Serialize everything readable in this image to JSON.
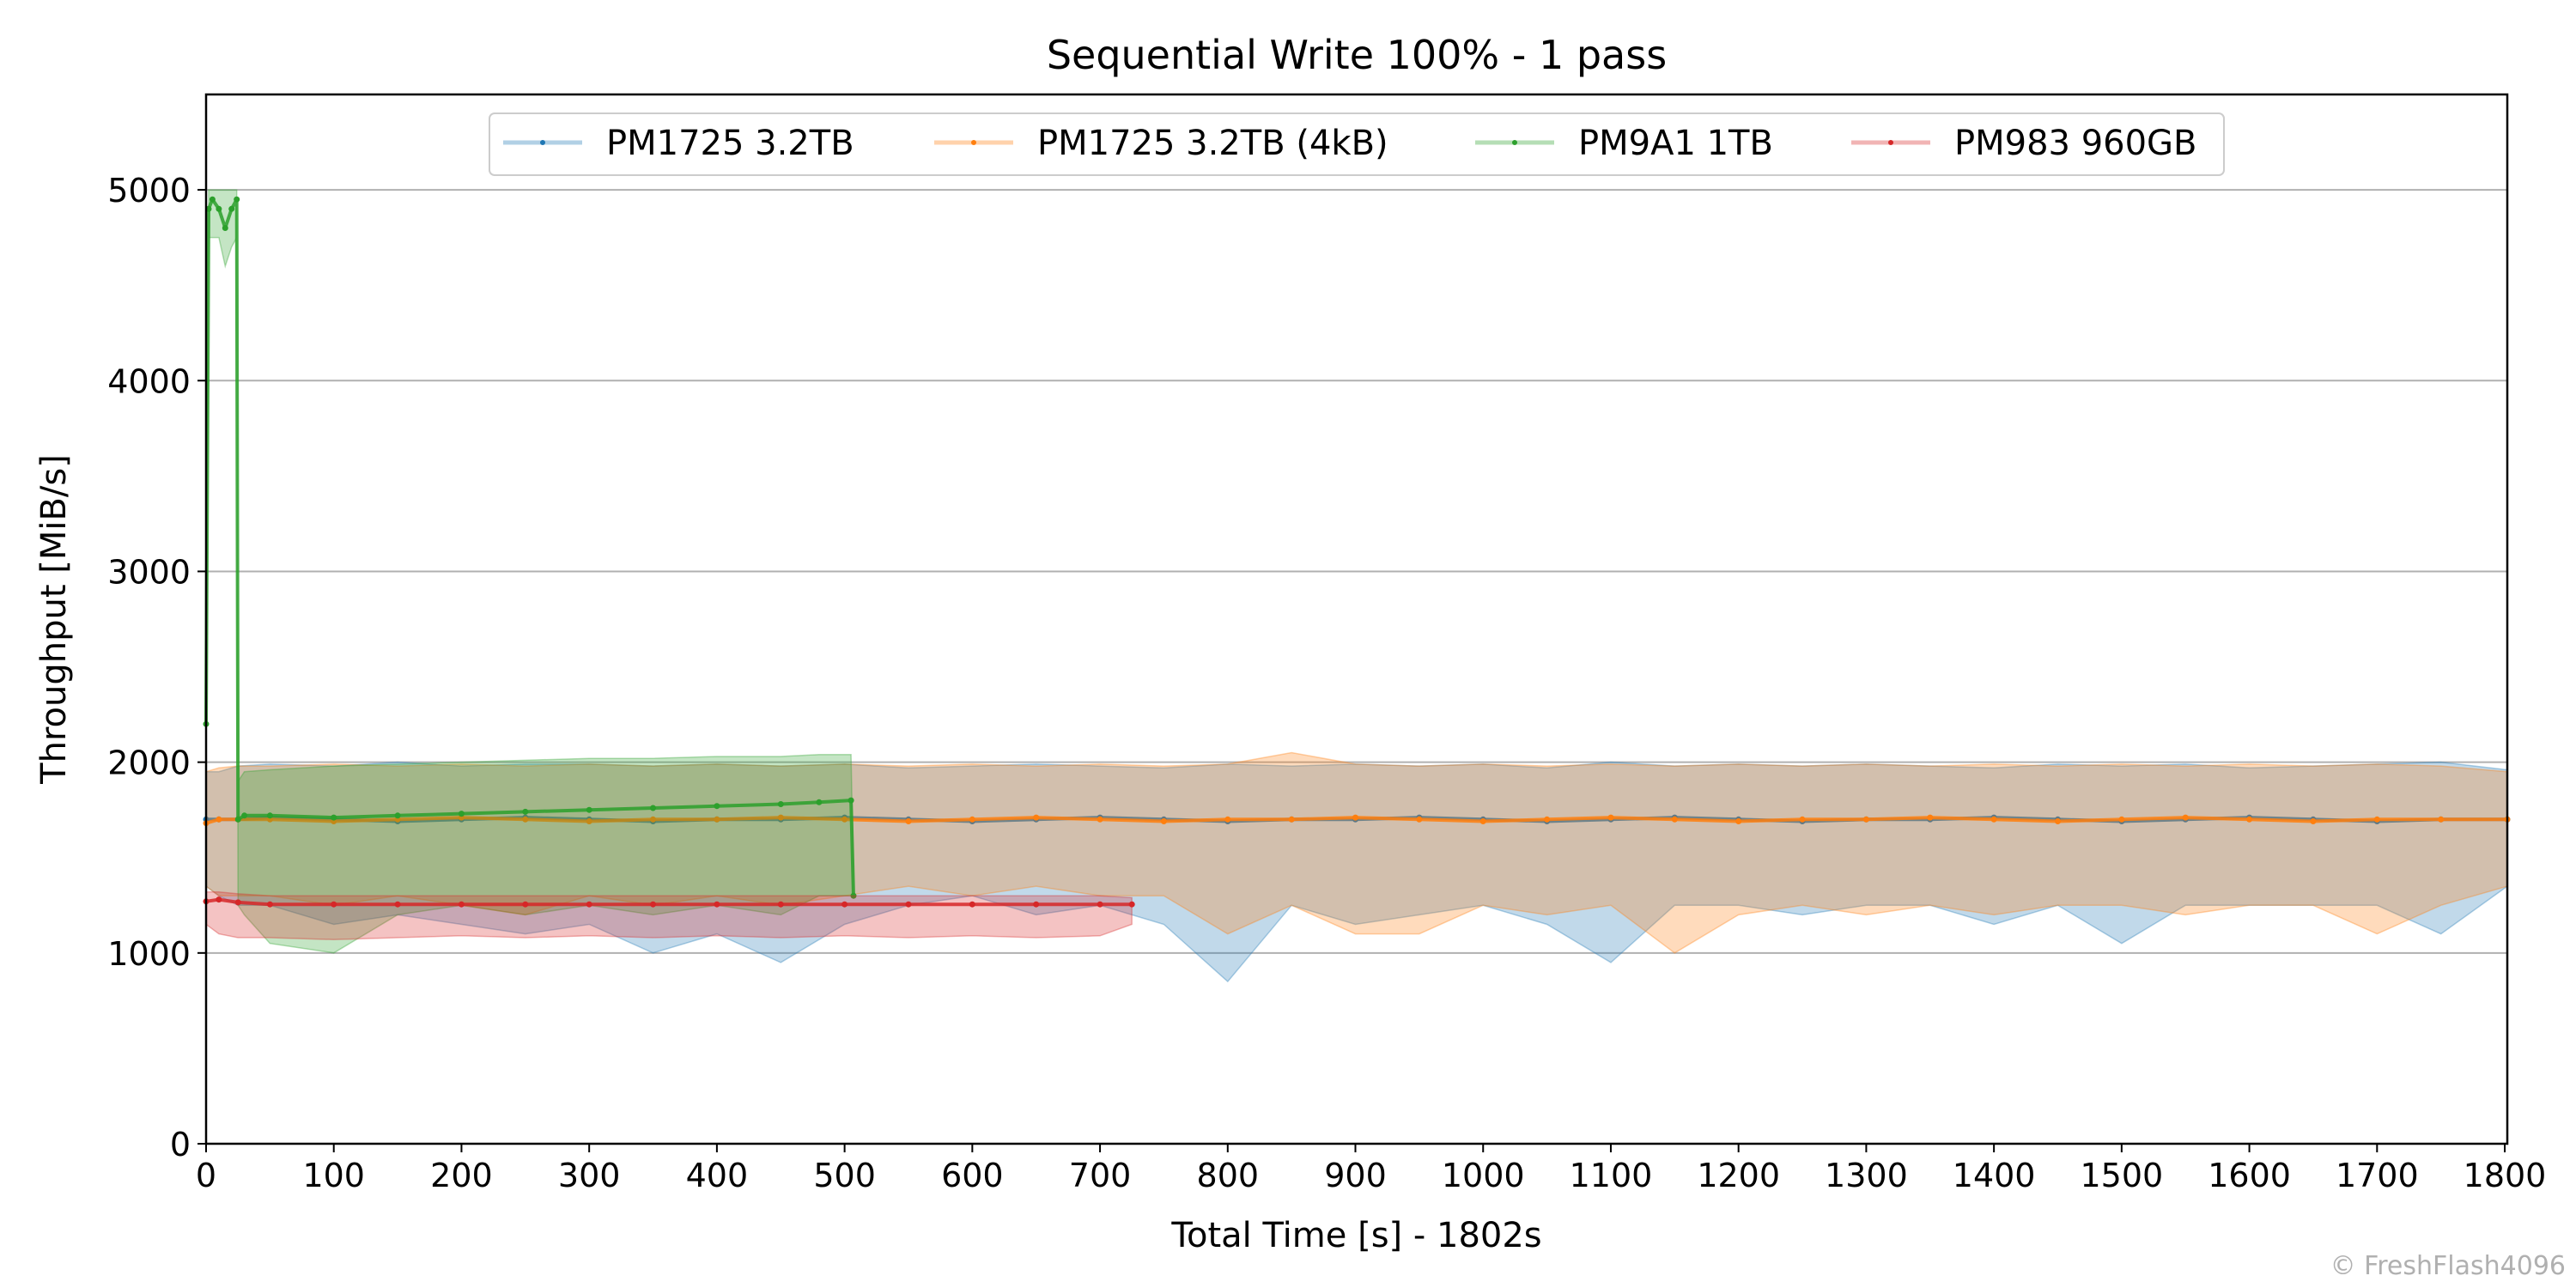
{
  "chart_data": {
    "type": "line",
    "title": "Sequential Write 100% - 1 pass",
    "xlabel": "Total Time [s] - 1802s",
    "ylabel": "Throughput [MiB/s]",
    "xlim": [
      0,
      1802
    ],
    "ylim": [
      0,
      5500
    ],
    "xticks": [
      0,
      100,
      200,
      300,
      400,
      500,
      600,
      700,
      800,
      900,
      1000,
      1100,
      1200,
      1300,
      1400,
      1500,
      1600,
      1700,
      1800
    ],
    "yticks": [
      0,
      1000,
      2000,
      3000,
      4000,
      5000
    ],
    "grid": "horizontal",
    "legend_position": "top-center",
    "series": [
      {
        "name": "PM1725 3.2TB",
        "color": "#1f77b4",
        "x": [
          0,
          10,
          25,
          50,
          100,
          150,
          200,
          250,
          300,
          350,
          400,
          450,
          500,
          550,
          600,
          650,
          700,
          750,
          800,
          850,
          900,
          950,
          1000,
          1050,
          1100,
          1150,
          1200,
          1250,
          1300,
          1350,
          1400,
          1450,
          1500,
          1550,
          1600,
          1650,
          1700,
          1750,
          1802
        ],
        "values": [
          1700,
          1700,
          1700,
          1710,
          1700,
          1690,
          1700,
          1710,
          1700,
          1690,
          1700,
          1700,
          1710,
          1700,
          1690,
          1700,
          1710,
          1700,
          1690,
          1700,
          1700,
          1710,
          1700,
          1690,
          1700,
          1710,
          1700,
          1690,
          1700,
          1700,
          1710,
          1700,
          1690,
          1700,
          1710,
          1700,
          1690,
          1700,
          1700
        ],
        "min_values": [
          1350,
          1300,
          1250,
          1250,
          1150,
          1200,
          1150,
          1100,
          1150,
          1000,
          1100,
          950,
          1150,
          1250,
          1300,
          1200,
          1250,
          1150,
          850,
          1250,
          1150,
          1200,
          1250,
          1150,
          950,
          1250,
          1250,
          1200,
          1250,
          1250,
          1150,
          1250,
          1050,
          1250,
          1250,
          1250,
          1250,
          1100,
          1350
        ],
        "max_values": [
          1950,
          1950,
          1980,
          1990,
          1980,
          2000,
          1980,
          1990,
          1990,
          1980,
          1990,
          1980,
          1990,
          1970,
          1980,
          1990,
          1980,
          1970,
          1990,
          1980,
          1990,
          1980,
          1990,
          1970,
          2000,
          1980,
          1990,
          1980,
          1990,
          1980,
          1970,
          1990,
          1980,
          1990,
          1970,
          1980,
          1990,
          2000,
          1960
        ]
      },
      {
        "name": "PM1725 3.2TB (4kB)",
        "color": "#ff7f0e",
        "x": [
          0,
          10,
          25,
          50,
          100,
          150,
          200,
          250,
          300,
          350,
          400,
          450,
          500,
          550,
          600,
          650,
          700,
          750,
          800,
          850,
          900,
          950,
          1000,
          1050,
          1100,
          1150,
          1200,
          1250,
          1300,
          1350,
          1400,
          1450,
          1500,
          1550,
          1600,
          1650,
          1700,
          1750,
          1802
        ],
        "values": [
          1680,
          1700,
          1700,
          1700,
          1690,
          1700,
          1710,
          1700,
          1690,
          1700,
          1700,
          1710,
          1700,
          1690,
          1700,
          1710,
          1700,
          1690,
          1700,
          1700,
          1710,
          1700,
          1690,
          1700,
          1710,
          1700,
          1690,
          1700,
          1700,
          1710,
          1700,
          1690,
          1700,
          1710,
          1700,
          1690,
          1700,
          1700,
          1700
        ],
        "min_values": [
          1350,
          1300,
          1300,
          1300,
          1250,
          1300,
          1250,
          1200,
          1300,
          1250,
          1300,
          1250,
          1300,
          1350,
          1300,
          1350,
          1300,
          1300,
          1100,
          1250,
          1100,
          1100,
          1250,
          1200,
          1250,
          1000,
          1200,
          1250,
          1200,
          1250,
          1200,
          1250,
          1250,
          1200,
          1250,
          1250,
          1100,
          1250,
          1350
        ],
        "max_values": [
          1950,
          1970,
          1980,
          1980,
          1990,
          1980,
          1990,
          1980,
          1990,
          1980,
          1990,
          1980,
          1990,
          1980,
          1990,
          1980,
          1990,
          1980,
          1990,
          2050,
          1990,
          1980,
          1990,
          1980,
          1990,
          1980,
          1990,
          1980,
          1990,
          1980,
          1990,
          1980,
          1990,
          1980,
          1990,
          1980,
          1990,
          1980,
          1950
        ]
      },
      {
        "name": "PM9A1 1TB",
        "color": "#2ca02c",
        "x": [
          0,
          2,
          5,
          10,
          15,
          20,
          24,
          25,
          30,
          50,
          100,
          150,
          200,
          250,
          300,
          350,
          400,
          450,
          480,
          505,
          507
        ],
        "values": [
          2200,
          4900,
          4950,
          4900,
          4800,
          4900,
          4950,
          1700,
          1720,
          1720,
          1710,
          1720,
          1730,
          1740,
          1750,
          1760,
          1770,
          1780,
          1790,
          1800,
          1300
        ],
        "min_values": [
          2000,
          4750,
          4750,
          4750,
          4600,
          4700,
          4750,
          1250,
          1200,
          1050,
          1000,
          1200,
          1250,
          1200,
          1250,
          1200,
          1250,
          1200,
          1300,
          1300,
          1300
        ],
        "max_values": [
          2300,
          5000,
          5000,
          5000,
          5000,
          5000,
          5000,
          1900,
          1950,
          1960,
          1980,
          1990,
          2000,
          2010,
          2020,
          2020,
          2030,
          2030,
          2040,
          2040,
          1400
        ]
      },
      {
        "name": "PM983 960GB",
        "color": "#d62728",
        "x": [
          0,
          10,
          25,
          50,
          100,
          150,
          200,
          250,
          300,
          350,
          400,
          450,
          500,
          550,
          600,
          650,
          700,
          725
        ],
        "values": [
          1270,
          1280,
          1265,
          1255,
          1255,
          1255,
          1255,
          1255,
          1255,
          1255,
          1255,
          1255,
          1255,
          1255,
          1255,
          1255,
          1255,
          1255
        ],
        "min_values": [
          1150,
          1100,
          1080,
          1080,
          1070,
          1080,
          1090,
          1080,
          1090,
          1080,
          1090,
          1080,
          1090,
          1080,
          1090,
          1080,
          1090,
          1150
        ],
        "max_values": [
          1320,
          1320,
          1310,
          1300,
          1300,
          1300,
          1300,
          1300,
          1300,
          1300,
          1300,
          1300,
          1300,
          1300,
          1300,
          1300,
          1300,
          1290
        ]
      }
    ]
  },
  "watermark": "© FreshFlash4096"
}
